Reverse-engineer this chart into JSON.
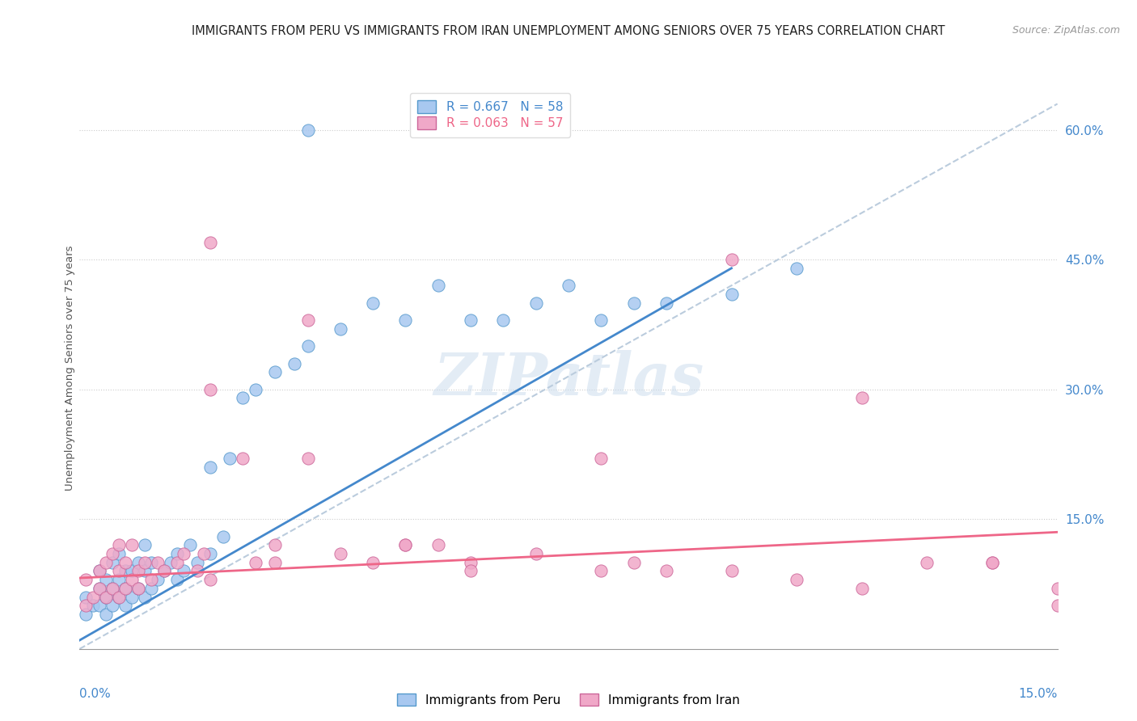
{
  "title": "IMMIGRANTS FROM PERU VS IMMIGRANTS FROM IRAN UNEMPLOYMENT AMONG SENIORS OVER 75 YEARS CORRELATION CHART",
  "source": "Source: ZipAtlas.com",
  "ylabel": "Unemployment Among Seniors over 75 years",
  "y_ticks_right": [
    0.15,
    0.3,
    0.45,
    0.6
  ],
  "y_tick_labels_right": [
    "15.0%",
    "30.0%",
    "45.0%",
    "60.0%"
  ],
  "xlim": [
    0.0,
    0.15
  ],
  "ylim": [
    0.0,
    0.65
  ],
  "legend_peru": "Immigrants from Peru",
  "legend_iran": "Immigrants from Iran",
  "R_peru": 0.667,
  "N_peru": 58,
  "R_iran": 0.063,
  "N_iran": 57,
  "color_peru": "#a8c8f0",
  "color_iran": "#f0a8c8",
  "color_peru_edge": "#5599cc",
  "color_iran_edge": "#cc6699",
  "color_line_peru": "#4488cc",
  "color_line_iran": "#ee6688",
  "color_ref_line": "#bbccdd",
  "color_axis_label": "#4488cc",
  "background_color": "#ffffff",
  "title_fontsize": 10.5,
  "watermark": "ZIPatlas",
  "peru_points_x": [
    0.001,
    0.001,
    0.002,
    0.003,
    0.003,
    0.003,
    0.004,
    0.004,
    0.004,
    0.005,
    0.005,
    0.005,
    0.006,
    0.006,
    0.006,
    0.007,
    0.007,
    0.007,
    0.008,
    0.008,
    0.009,
    0.009,
    0.01,
    0.01,
    0.01,
    0.011,
    0.011,
    0.012,
    0.013,
    0.014,
    0.015,
    0.015,
    0.016,
    0.017,
    0.018,
    0.02,
    0.02,
    0.022,
    0.023,
    0.025,
    0.027,
    0.03,
    0.033,
    0.035,
    0.04,
    0.045,
    0.05,
    0.055,
    0.06,
    0.065,
    0.07,
    0.075,
    0.08,
    0.085,
    0.09,
    0.1,
    0.11,
    0.035
  ],
  "peru_points_y": [
    0.04,
    0.06,
    0.05,
    0.05,
    0.07,
    0.09,
    0.04,
    0.06,
    0.08,
    0.05,
    0.07,
    0.1,
    0.06,
    0.08,
    0.11,
    0.05,
    0.07,
    0.09,
    0.06,
    0.09,
    0.07,
    0.1,
    0.06,
    0.09,
    0.12,
    0.07,
    0.1,
    0.08,
    0.09,
    0.1,
    0.08,
    0.11,
    0.09,
    0.12,
    0.1,
    0.11,
    0.21,
    0.13,
    0.22,
    0.29,
    0.3,
    0.32,
    0.33,
    0.35,
    0.37,
    0.4,
    0.38,
    0.42,
    0.38,
    0.38,
    0.4,
    0.42,
    0.38,
    0.4,
    0.4,
    0.41,
    0.44,
    0.6
  ],
  "iran_points_x": [
    0.001,
    0.001,
    0.002,
    0.003,
    0.003,
    0.004,
    0.004,
    0.005,
    0.005,
    0.006,
    0.006,
    0.006,
    0.007,
    0.007,
    0.008,
    0.008,
    0.009,
    0.009,
    0.01,
    0.011,
    0.012,
    0.013,
    0.015,
    0.016,
    0.018,
    0.019,
    0.02,
    0.025,
    0.027,
    0.03,
    0.035,
    0.04,
    0.045,
    0.05,
    0.055,
    0.06,
    0.07,
    0.08,
    0.085,
    0.09,
    0.1,
    0.11,
    0.12,
    0.13,
    0.14,
    0.15,
    0.02,
    0.03,
    0.035,
    0.05,
    0.06,
    0.08,
    0.1,
    0.12,
    0.14,
    0.15,
    0.02
  ],
  "iran_points_y": [
    0.05,
    0.08,
    0.06,
    0.07,
    0.09,
    0.06,
    0.1,
    0.07,
    0.11,
    0.06,
    0.09,
    0.12,
    0.07,
    0.1,
    0.08,
    0.12,
    0.07,
    0.09,
    0.1,
    0.08,
    0.1,
    0.09,
    0.1,
    0.11,
    0.09,
    0.11,
    0.47,
    0.22,
    0.1,
    0.12,
    0.22,
    0.11,
    0.1,
    0.12,
    0.12,
    0.1,
    0.11,
    0.22,
    0.1,
    0.09,
    0.09,
    0.08,
    0.07,
    0.1,
    0.1,
    0.05,
    0.3,
    0.1,
    0.38,
    0.12,
    0.09,
    0.09,
    0.45,
    0.29,
    0.1,
    0.07,
    0.08
  ],
  "peru_line_x0": 0.0,
  "peru_line_y0": 0.01,
  "peru_line_x1": 0.1,
  "peru_line_y1": 0.44,
  "iran_line_x0": 0.0,
  "iran_line_y0": 0.082,
  "iran_line_x1": 0.15,
  "iran_line_y1": 0.135,
  "ref_line_x0": 0.0,
  "ref_line_y0": 0.0,
  "ref_line_x1": 0.15,
  "ref_line_y1": 0.63
}
